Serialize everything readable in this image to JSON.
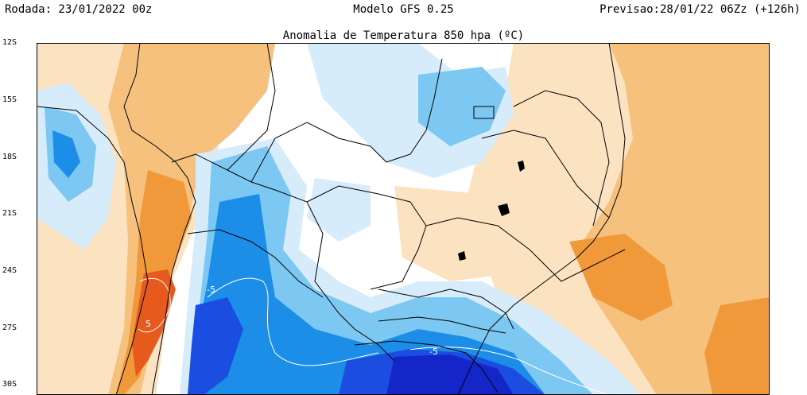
{
  "header": {
    "run": "Rodada: 23/01/2022 00z",
    "model": "Modelo GFS 0.25",
    "forecast": "Previsao:28/01/22 06Zz (+126h)"
  },
  "map": {
    "title": "Anomalia de Temperatura 850 hpa (ºC)",
    "lat_labels": [
      "12S",
      "15S",
      "18S",
      "21S",
      "24S",
      "27S",
      "30S"
    ],
    "contour_labels": [
      "-5",
      "5",
      "-5"
    ],
    "colors": {
      "warm_light": "#fbe3c2",
      "warm_mid": "#f6c07d",
      "warm_strong": "#f0993a",
      "hot": "#e65a1e",
      "cool_light": "#d6ecfa",
      "cool_mid": "#7cc8f2",
      "cool_strong": "#1c8ee8",
      "cold": "#1a4de0",
      "very_cold": "#1526c8",
      "border": "#000000"
    }
  }
}
